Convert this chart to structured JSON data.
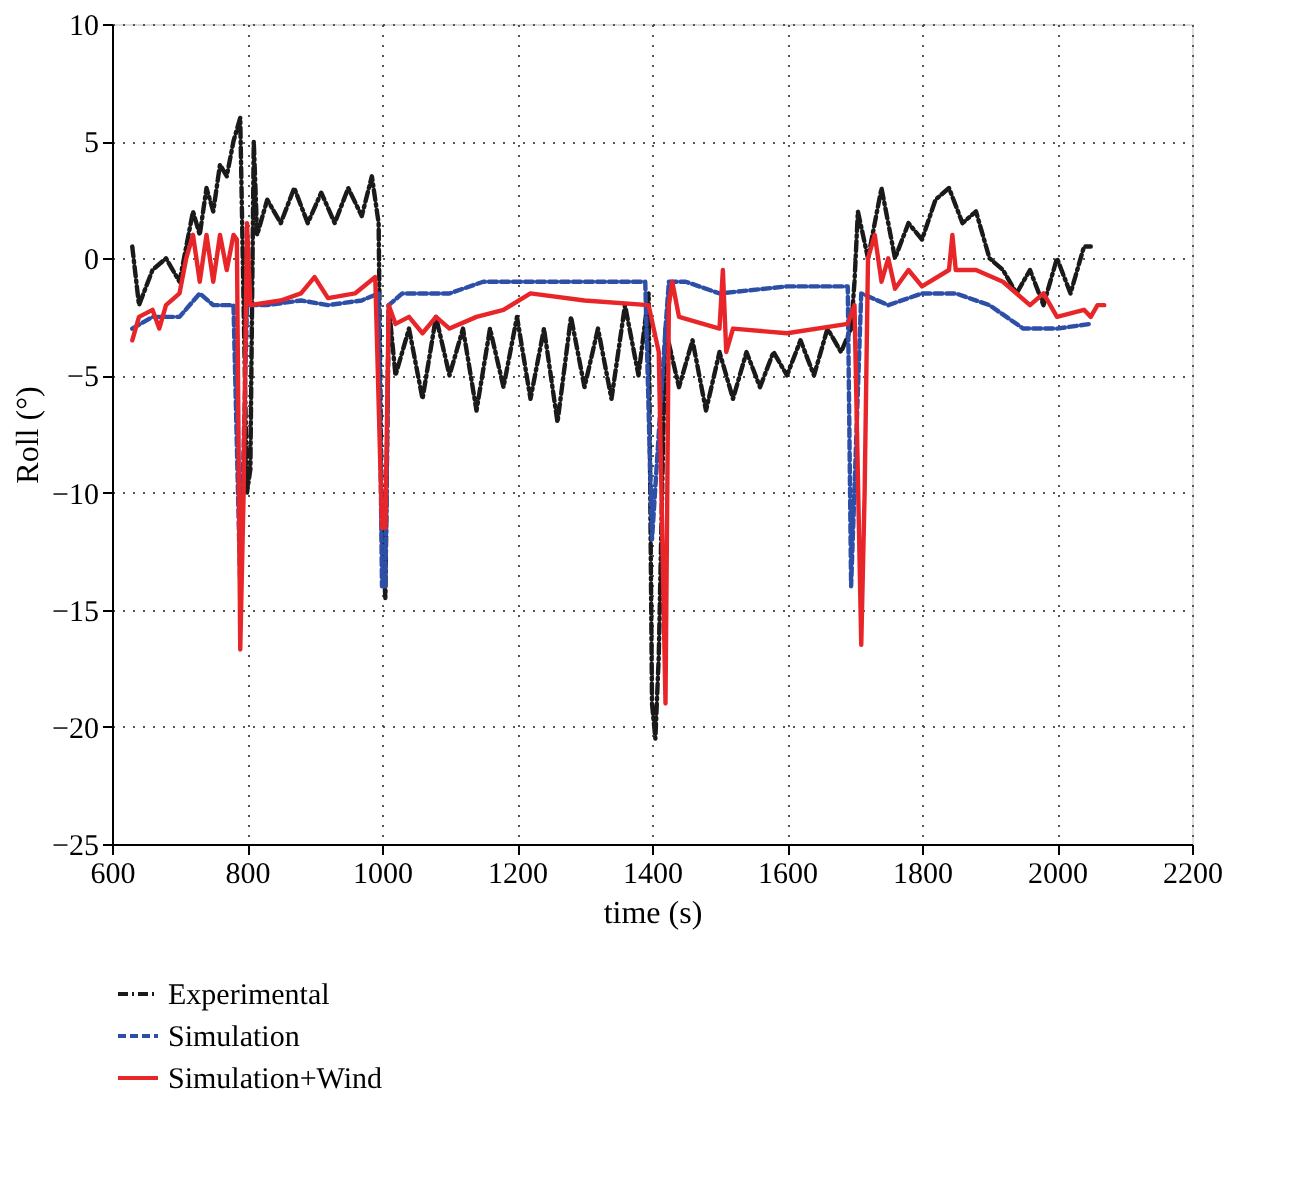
{
  "chart_data": {
    "type": "line",
    "xlabel": "time (s)",
    "ylabel": "Roll (°)",
    "xlim": [
      600,
      2200
    ],
    "xticks": [
      600,
      800,
      1000,
      1200,
      1400,
      1600,
      1800,
      2000,
      2200
    ],
    "ylim": [
      -25,
      10
    ],
    "yticks": [
      -25,
      -20,
      -15,
      -10,
      -5,
      0,
      5,
      10
    ],
    "grid": true,
    "legend": "bottom",
    "marker": "none",
    "series": [
      {
        "name": "Experimental",
        "color": "#1a1a1a",
        "line_style": "dashdot",
        "x": [
          630,
          640,
          660,
          680,
          700,
          720,
          730,
          740,
          750,
          760,
          770,
          780,
          790,
          795,
          800,
          805,
          810,
          815,
          830,
          850,
          870,
          890,
          910,
          930,
          950,
          970,
          985,
          995,
          1000,
          1005,
          1010,
          1020,
          1040,
          1060,
          1080,
          1100,
          1120,
          1140,
          1160,
          1180,
          1200,
          1220,
          1240,
          1260,
          1280,
          1300,
          1320,
          1340,
          1360,
          1380,
          1395,
          1400,
          1405,
          1410,
          1420,
          1440,
          1460,
          1480,
          1500,
          1520,
          1540,
          1560,
          1580,
          1600,
          1620,
          1640,
          1660,
          1680,
          1695,
          1700,
          1705,
          1720,
          1740,
          1760,
          1780,
          1800,
          1820,
          1840,
          1860,
          1880,
          1900,
          1920,
          1940,
          1960,
          1980,
          2000,
          2020,
          2040,
          2050
        ],
        "values": [
          0.5,
          -2,
          -0.5,
          0,
          -1,
          2,
          1,
          3,
          2,
          4,
          3.5,
          5,
          6,
          -2,
          -10,
          -9,
          5,
          1,
          2.5,
          1.5,
          3,
          1.5,
          2.8,
          1.5,
          3,
          1.8,
          3.5,
          1.5,
          -12,
          -14.5,
          -2,
          -5,
          -3,
          -6,
          -2.5,
          -5,
          -3,
          -6.5,
          -3,
          -5.5,
          -2.5,
          -6,
          -3,
          -7,
          -2.5,
          -5.5,
          -3,
          -6,
          -2,
          -5,
          -1.5,
          -19,
          -20.5,
          -17,
          -3,
          -5.5,
          -3.5,
          -6.5,
          -4,
          -6,
          -4,
          -5.5,
          -4,
          -5,
          -3.5,
          -5,
          -3,
          -4,
          -3,
          -1,
          2,
          0,
          3,
          0,
          1.5,
          0.8,
          2.5,
          3,
          1.5,
          2,
          0,
          -0.5,
          -1.5,
          -0.5,
          -2,
          0,
          -1.5,
          0.5,
          0.5
        ]
      },
      {
        "name": "Simulation",
        "color": "#2e4fa8",
        "line_style": "dashed",
        "x": [
          630,
          660,
          700,
          730,
          750,
          780,
          790,
          800,
          830,
          880,
          920,
          970,
          995,
          1000,
          1005,
          1010,
          1030,
          1100,
          1150,
          1250,
          1300,
          1390,
          1400,
          1420,
          1425,
          1450,
          1500,
          1600,
          1690,
          1695,
          1710,
          1750,
          1800,
          1850,
          1900,
          1950,
          2000,
          2050
        ],
        "values": [
          -3,
          -2.5,
          -2.5,
          -1.5,
          -2,
          -2,
          -14,
          -2,
          -2,
          -1.8,
          -2,
          -1.8,
          -1.5,
          -14,
          -14,
          -2,
          -1.5,
          -1.5,
          -1,
          -1,
          -1,
          -1,
          -12,
          -3,
          -1,
          -1,
          -1.5,
          -1.2,
          -1.2,
          -14,
          -1.5,
          -2,
          -1.5,
          -1.5,
          -2,
          -3,
          -3,
          -2.8
        ]
      },
      {
        "name": "Simulation+Wind",
        "color": "#e8262a",
        "line_style": "solid",
        "x": [
          630,
          640,
          660,
          670,
          680,
          700,
          710,
          720,
          730,
          740,
          750,
          760,
          770,
          780,
          785,
          790,
          795,
          800,
          805,
          850,
          880,
          900,
          920,
          960,
          990,
          1000,
          1005,
          1010,
          1020,
          1040,
          1060,
          1080,
          1100,
          1140,
          1180,
          1220,
          1300,
          1395,
          1410,
          1420,
          1425,
          1430,
          1440,
          1500,
          1505,
          1510,
          1520,
          1600,
          1690,
          1700,
          1710,
          1715,
          1720,
          1730,
          1740,
          1750,
          1760,
          1780,
          1800,
          1840,
          1845,
          1850,
          1880,
          1920,
          1960,
          1980,
          2000,
          2040,
          2050,
          2060,
          2070
        ],
        "values": [
          -3.5,
          -2.5,
          -2.2,
          -3,
          -2,
          -1.5,
          0,
          1,
          -1,
          1,
          -1,
          1,
          -0.5,
          1,
          0.8,
          -16.7,
          -10,
          1.5,
          -2,
          -1.8,
          -1.5,
          -0.8,
          -1.7,
          -1.5,
          -0.8,
          -11.5,
          -11.5,
          -2,
          -2.8,
          -2.5,
          -3.2,
          -2.5,
          -3,
          -2.5,
          -2.2,
          -1.5,
          -1.8,
          -2,
          -4,
          -19,
          -2,
          -1,
          -2.5,
          -3,
          -0.5,
          -4,
          -3,
          -3.2,
          -2.8,
          -2,
          -16.5,
          -10,
          0,
          1,
          -1,
          0,
          -1.3,
          -0.5,
          -1.2,
          -0.5,
          1,
          -0.5,
          -0.5,
          -1,
          -2,
          -1.5,
          -2.5,
          -2.2,
          -2.5,
          -2,
          -2
        ]
      }
    ]
  }
}
